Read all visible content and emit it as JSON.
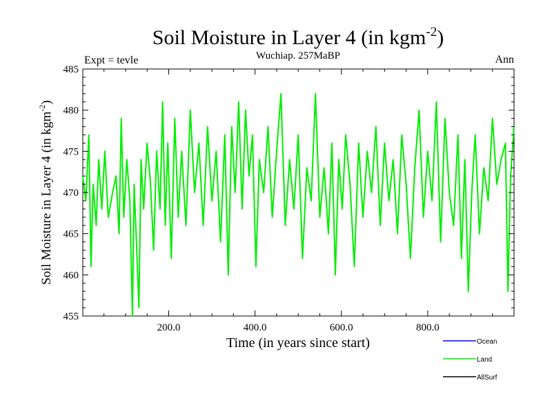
{
  "chart_data": {
    "type": "line",
    "title": "Soil Moisture in Layer 4 (in kgm",
    "title_sup": "-2",
    "title_close": ")",
    "subtitle_left": "Expt = tevle",
    "subtitle_center": "Wuchiap. 257MaBP",
    "subtitle_right": "Ann",
    "xlabel": "Time (in years since start)",
    "ylabel": "Soil Moisture in Layer 4 (in kgm",
    "ylabel_sup": "-2",
    "ylabel_close": ")",
    "xlim": [
      1,
      1000
    ],
    "ylim": [
      455,
      485
    ],
    "xticks": [
      200,
      400,
      600,
      800
    ],
    "xtick_labels": [
      "200.0",
      "400.0",
      "600.0",
      "800.0"
    ],
    "yticks": [
      455,
      460,
      465,
      470,
      475,
      480,
      485
    ],
    "ytick_labels": [
      "455",
      "460",
      "465",
      "470",
      "475",
      "480",
      "485"
    ],
    "series": [
      {
        "name": "Ocean",
        "color": "#0000ff",
        "values": []
      },
      {
        "name": "AllSurf",
        "color": "#000000",
        "values": []
      },
      {
        "name": "Land",
        "color": "#00ee00",
        "x": [
          1,
          8,
          15,
          20,
          25,
          32,
          38,
          45,
          52,
          60,
          70,
          78,
          85,
          90,
          96,
          103,
          110,
          116,
          120,
          126,
          131,
          136,
          142,
          150,
          158,
          165,
          172,
          180,
          186,
          192,
          198,
          206,
          214,
          222,
          230,
          240,
          250,
          260,
          270,
          280,
          290,
          300,
          310,
          320,
          330,
          338,
          346,
          354,
          362,
          370,
          378,
          386,
          394,
          402,
          410,
          420,
          430,
          440,
          450,
          460,
          470,
          480,
          490,
          500,
          510,
          520,
          530,
          540,
          550,
          560,
          570,
          578,
          586,
          594,
          602,
          610,
          620,
          630,
          640,
          650,
          660,
          670,
          680,
          690,
          700,
          710,
          720,
          730,
          740,
          750,
          760,
          770,
          780,
          790,
          800,
          810,
          820,
          830,
          840,
          850,
          860,
          870,
          878,
          886,
          894,
          902,
          910,
          920,
          930,
          940,
          950,
          960,
          970,
          980,
          986,
          992,
          1000
        ],
        "values": [
          472,
          469,
          477,
          461,
          471,
          466,
          474,
          468,
          475,
          467,
          470,
          472,
          465,
          479,
          467,
          474,
          469,
          455,
          471,
          463,
          456,
          474,
          468,
          476,
          471,
          463,
          475,
          468,
          481,
          466,
          476,
          462,
          479,
          467,
          475,
          466,
          480,
          470,
          476,
          466,
          478,
          469,
          475,
          464,
          477,
          460,
          478,
          470,
          481,
          468,
          480,
          472,
          477,
          461,
          474,
          470,
          478,
          467,
          475,
          482,
          466,
          474,
          468,
          477,
          462,
          473,
          469,
          482,
          467,
          473,
          465,
          476,
          460,
          474,
          468,
          477,
          471,
          461,
          476,
          467,
          475,
          470,
          478,
          466,
          476,
          469,
          474,
          465,
          477,
          471,
          462,
          473,
          480,
          467,
          475,
          469,
          481,
          464,
          479,
          470,
          466,
          477,
          462,
          474,
          458,
          470,
          477,
          465,
          473,
          469,
          479,
          471,
          474,
          476,
          458,
          472,
          478
        ]
      }
    ],
    "legend_position": "bottom-right"
  }
}
